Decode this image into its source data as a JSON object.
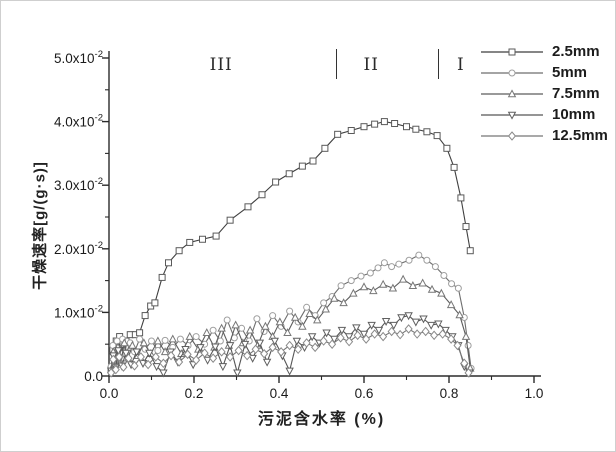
{
  "figure": {
    "background": "#ffffff",
    "border_color": "#cfcfcf",
    "axis_color": "#2b2b2b",
    "text_color": "#1a1a1a"
  },
  "regions": {
    "labels": [
      {
        "text": "III",
        "x": 0.264
      },
      {
        "text": "II",
        "x": 0.617
      },
      {
        "text": "I",
        "x": 0.828
      }
    ],
    "dividers": [
      {
        "x": 0.533
      },
      {
        "x": 0.774
      }
    ]
  },
  "chart_data": {
    "type": "line",
    "title": "",
    "xlabel": "污泥含水率 (%)",
    "ylabel": "干燥速率[g/(g·s)]",
    "xlim": [
      0.0,
      1.0
    ],
    "ylim_display": [
      "0.0",
      "5.0x10-2"
    ],
    "y_unit": "g/(g·s)",
    "y_value_scale": 0.01,
    "grid": false,
    "legend_position": "top-right",
    "xticks": {
      "major": [
        0.0,
        0.2,
        0.4,
        0.6,
        0.8,
        1.0
      ],
      "minor": [
        0.1,
        0.3,
        0.5,
        0.7,
        0.9
      ],
      "labels": [
        "0.0",
        "0.2",
        "0.4",
        "0.6",
        "0.8",
        "1.0"
      ]
    },
    "yticks": {
      "major": [
        {
          "v": 0.0,
          "base": "0.0",
          "exp": ""
        },
        {
          "v": 1.0,
          "base": "1.0x10",
          "exp": "-2"
        },
        {
          "v": 2.0,
          "base": "2.0x10",
          "exp": "-2"
        },
        {
          "v": 3.0,
          "base": "3.0x10",
          "exp": "-2"
        },
        {
          "v": 4.0,
          "base": "4.0x10",
          "exp": "-2"
        },
        {
          "v": 5.0,
          "base": "5.0x10",
          "exp": "-2"
        }
      ],
      "minor": [
        0.5,
        1.5,
        2.5,
        3.5,
        4.5
      ]
    },
    "series": [
      {
        "name": "2.5mm",
        "marker": "square",
        "line_color": "#3f3f3f",
        "marker_color": "#5a5a5a",
        "points": [
          [
            0.005,
            0.1
          ],
          [
            0.009,
            0.42
          ],
          [
            0.013,
            0.18
          ],
          [
            0.017,
            0.55
          ],
          [
            0.021,
            0.28
          ],
          [
            0.025,
            0.62
          ],
          [
            0.029,
            0.35
          ],
          [
            0.033,
            0.5
          ],
          [
            0.04,
            0.55
          ],
          [
            0.05,
            0.65
          ],
          [
            0.062,
            0.65
          ],
          [
            0.072,
            0.68
          ],
          [
            0.085,
            0.95
          ],
          [
            0.098,
            1.1
          ],
          [
            0.108,
            1.15
          ],
          [
            0.125,
            1.55
          ],
          [
            0.14,
            1.78
          ],
          [
            0.165,
            1.97
          ],
          [
            0.19,
            2.1
          ],
          [
            0.22,
            2.15
          ],
          [
            0.252,
            2.2
          ],
          [
            0.285,
            2.45
          ],
          [
            0.327,
            2.66
          ],
          [
            0.36,
            2.85
          ],
          [
            0.392,
            3.05
          ],
          [
            0.424,
            3.18
          ],
          [
            0.455,
            3.3
          ],
          [
            0.48,
            3.38
          ],
          [
            0.508,
            3.58
          ],
          [
            0.538,
            3.8
          ],
          [
            0.57,
            3.86
          ],
          [
            0.6,
            3.92
          ],
          [
            0.625,
            3.96
          ],
          [
            0.648,
            4.0
          ],
          [
            0.672,
            3.97
          ],
          [
            0.7,
            3.92
          ],
          [
            0.722,
            3.88
          ],
          [
            0.748,
            3.84
          ],
          [
            0.772,
            3.78
          ],
          [
            0.795,
            3.58
          ],
          [
            0.812,
            3.28
          ],
          [
            0.828,
            2.8
          ],
          [
            0.84,
            2.35
          ],
          [
            0.85,
            1.97
          ]
        ]
      },
      {
        "name": "5mm",
        "marker": "circle",
        "line_color": "#6e6e6e",
        "marker_color": "#9e9e9e",
        "points": [
          [
            0.005,
            0.15
          ],
          [
            0.009,
            0.48
          ],
          [
            0.014,
            0.22
          ],
          [
            0.019,
            0.55
          ],
          [
            0.025,
            0.3
          ],
          [
            0.032,
            0.58
          ],
          [
            0.04,
            0.35
          ],
          [
            0.05,
            0.52
          ],
          [
            0.06,
            0.38
          ],
          [
            0.072,
            0.58
          ],
          [
            0.085,
            0.42
          ],
          [
            0.1,
            0.55
          ],
          [
            0.115,
            0.4
          ],
          [
            0.132,
            0.56
          ],
          [
            0.15,
            0.45
          ],
          [
            0.168,
            0.58
          ],
          [
            0.186,
            0.48
          ],
          [
            0.205,
            0.62
          ],
          [
            0.225,
            0.5
          ],
          [
            0.245,
            0.72
          ],
          [
            0.262,
            0.55
          ],
          [
            0.278,
            0.88
          ],
          [
            0.295,
            0.6
          ],
          [
            0.312,
            0.75
          ],
          [
            0.33,
            0.55
          ],
          [
            0.348,
            0.9
          ],
          [
            0.365,
            0.7
          ],
          [
            0.385,
            0.95
          ],
          [
            0.405,
            0.78
          ],
          [
            0.425,
            1.02
          ],
          [
            0.445,
            0.85
          ],
          [
            0.465,
            1.08
          ],
          [
            0.485,
            0.95
          ],
          [
            0.505,
            1.15
          ],
          [
            0.525,
            1.25
          ],
          [
            0.546,
            1.42
          ],
          [
            0.57,
            1.5
          ],
          [
            0.593,
            1.57
          ],
          [
            0.615,
            1.62
          ],
          [
            0.633,
            1.7
          ],
          [
            0.648,
            1.78
          ],
          [
            0.665,
            1.72
          ],
          [
            0.682,
            1.76
          ],
          [
            0.706,
            1.82
          ],
          [
            0.729,
            1.9
          ],
          [
            0.748,
            1.82
          ],
          [
            0.768,
            1.72
          ],
          [
            0.788,
            1.58
          ],
          [
            0.806,
            1.45
          ],
          [
            0.822,
            1.38
          ],
          [
            0.836,
            0.92
          ],
          [
            0.845,
            0.48
          ],
          [
            0.852,
            0.12
          ]
        ]
      },
      {
        "name": "7.5mm",
        "marker": "triangle-up",
        "line_color": "#5c5c5c",
        "marker_color": "#777777",
        "points": [
          [
            0.005,
            0.1
          ],
          [
            0.01,
            0.38
          ],
          [
            0.015,
            0.18
          ],
          [
            0.021,
            0.45
          ],
          [
            0.028,
            0.22
          ],
          [
            0.036,
            0.52
          ],
          [
            0.045,
            0.28
          ],
          [
            0.055,
            0.48
          ],
          [
            0.068,
            0.32
          ],
          [
            0.082,
            0.52
          ],
          [
            0.098,
            0.35
          ],
          [
            0.115,
            0.55
          ],
          [
            0.132,
            0.38
          ],
          [
            0.15,
            0.58
          ],
          [
            0.17,
            0.35
          ],
          [
            0.19,
            0.62
          ],
          [
            0.21,
            0.42
          ],
          [
            0.23,
            0.68
          ],
          [
            0.248,
            0.45
          ],
          [
            0.265,
            0.75
          ],
          [
            0.282,
            0.48
          ],
          [
            0.298,
            0.8
          ],
          [
            0.315,
            0.52
          ],
          [
            0.332,
            0.72
          ],
          [
            0.35,
            0.48
          ],
          [
            0.368,
            0.78
          ],
          [
            0.385,
            0.62
          ],
          [
            0.402,
            0.85
          ],
          [
            0.42,
            0.68
          ],
          [
            0.438,
            0.92
          ],
          [
            0.455,
            0.78
          ],
          [
            0.472,
            0.98
          ],
          [
            0.49,
            0.88
          ],
          [
            0.51,
            1.05
          ],
          [
            0.53,
            1.22
          ],
          [
            0.552,
            1.15
          ],
          [
            0.575,
            1.3
          ],
          [
            0.6,
            1.4
          ],
          [
            0.622,
            1.34
          ],
          [
            0.645,
            1.44
          ],
          [
            0.668,
            1.38
          ],
          [
            0.692,
            1.52
          ],
          [
            0.715,
            1.42
          ],
          [
            0.738,
            1.46
          ],
          [
            0.76,
            1.36
          ],
          [
            0.782,
            1.3
          ],
          [
            0.805,
            1.12
          ],
          [
            0.825,
            0.96
          ],
          [
            0.84,
            0.62
          ],
          [
            0.85,
            0.12
          ]
        ]
      },
      {
        "name": "10mm",
        "marker": "triangle-down",
        "line_color": "#565656",
        "marker_color": "#5f5f5f",
        "points": [
          [
            0.005,
            0.08
          ],
          [
            0.01,
            0.32
          ],
          [
            0.016,
            0.14
          ],
          [
            0.022,
            0.4
          ],
          [
            0.03,
            0.16
          ],
          [
            0.04,
            0.36
          ],
          [
            0.052,
            0.18
          ],
          [
            0.065,
            0.38
          ],
          [
            0.08,
            0.2
          ],
          [
            0.095,
            0.36
          ],
          [
            0.112,
            0.15
          ],
          [
            0.128,
            0.05
          ],
          [
            0.145,
            0.38
          ],
          [
            0.162,
            0.22
          ],
          [
            0.18,
            0.42
          ],
          [
            0.198,
            0.18
          ],
          [
            0.215,
            0.45
          ],
          [
            0.232,
            0.25
          ],
          [
            0.25,
            0.46
          ],
          [
            0.268,
            0.15
          ],
          [
            0.285,
            0.48
          ],
          [
            0.302,
            0.05
          ],
          [
            0.32,
            0.5
          ],
          [
            0.338,
            0.28
          ],
          [
            0.355,
            0.52
          ],
          [
            0.372,
            0.22
          ],
          [
            0.39,
            0.55
          ],
          [
            0.408,
            0.32
          ],
          [
            0.425,
            0.08
          ],
          [
            0.442,
            0.55
          ],
          [
            0.46,
            0.45
          ],
          [
            0.478,
            0.62
          ],
          [
            0.495,
            0.52
          ],
          [
            0.512,
            0.68
          ],
          [
            0.53,
            0.58
          ],
          [
            0.548,
            0.72
          ],
          [
            0.565,
            0.62
          ],
          [
            0.582,
            0.76
          ],
          [
            0.6,
            0.66
          ],
          [
            0.618,
            0.8
          ],
          [
            0.635,
            0.72
          ],
          [
            0.652,
            0.86
          ],
          [
            0.67,
            0.8
          ],
          [
            0.688,
            0.92
          ],
          [
            0.705,
            0.95
          ],
          [
            0.722,
            0.85
          ],
          [
            0.74,
            0.9
          ],
          [
            0.758,
            0.8
          ],
          [
            0.775,
            0.82
          ],
          [
            0.792,
            0.72
          ],
          [
            0.808,
            0.62
          ],
          [
            0.822,
            0.48
          ],
          [
            0.836,
            0.15
          ],
          [
            0.848,
            0.05
          ]
        ]
      },
      {
        "name": "12.5mm",
        "marker": "diamond",
        "line_color": "#767676",
        "marker_color": "#8a8a8a",
        "points": [
          [
            0.005,
            0.05
          ],
          [
            0.01,
            0.26
          ],
          [
            0.016,
            0.1
          ],
          [
            0.024,
            0.3
          ],
          [
            0.034,
            0.14
          ],
          [
            0.046,
            0.28
          ],
          [
            0.06,
            0.16
          ],
          [
            0.075,
            0.3
          ],
          [
            0.092,
            0.18
          ],
          [
            0.11,
            0.3
          ],
          [
            0.128,
            0.2
          ],
          [
            0.146,
            0.32
          ],
          [
            0.165,
            0.22
          ],
          [
            0.185,
            0.34
          ],
          [
            0.205,
            0.25
          ],
          [
            0.225,
            0.36
          ],
          [
            0.245,
            0.28
          ],
          [
            0.265,
            0.38
          ],
          [
            0.285,
            0.3
          ],
          [
            0.305,
            0.4
          ],
          [
            0.325,
            0.32
          ],
          [
            0.345,
            0.42
          ],
          [
            0.365,
            0.35
          ],
          [
            0.385,
            0.45
          ],
          [
            0.405,
            0.38
          ],
          [
            0.425,
            0.48
          ],
          [
            0.445,
            0.42
          ],
          [
            0.465,
            0.52
          ],
          [
            0.485,
            0.45
          ],
          [
            0.505,
            0.55
          ],
          [
            0.525,
            0.5
          ],
          [
            0.545,
            0.6
          ],
          [
            0.565,
            0.54
          ],
          [
            0.585,
            0.64
          ],
          [
            0.605,
            0.58
          ],
          [
            0.625,
            0.66
          ],
          [
            0.645,
            0.62
          ],
          [
            0.665,
            0.7
          ],
          [
            0.685,
            0.65
          ],
          [
            0.705,
            0.74
          ],
          [
            0.725,
            0.66
          ],
          [
            0.745,
            0.7
          ],
          [
            0.765,
            0.64
          ],
          [
            0.785,
            0.66
          ],
          [
            0.805,
            0.58
          ],
          [
            0.82,
            0.48
          ],
          [
            0.836,
            0.2
          ],
          [
            0.846,
            0.05
          ]
        ]
      }
    ]
  }
}
